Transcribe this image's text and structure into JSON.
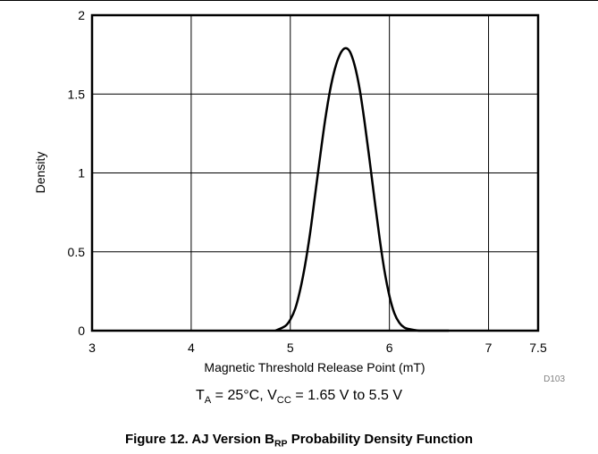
{
  "chart_data": {
    "type": "line",
    "title": "",
    "xlabel": "Magnetic Threshold Release Point (mT)",
    "ylabel": "Density",
    "xlim": [
      3,
      7.5
    ],
    "ylim": [
      0,
      2
    ],
    "xticks": [
      "3",
      "4",
      "5",
      "6",
      "7",
      "7.5"
    ],
    "xtick_values": [
      3,
      4,
      5,
      6,
      7,
      7.5
    ],
    "yticks": [
      "0",
      "0.5",
      "1",
      "1.5",
      "2"
    ],
    "ytick_values": [
      0,
      0.5,
      1,
      1.5,
      2
    ],
    "grid": true,
    "series": [
      {
        "x": [
          4.85,
          4.95,
          5.0,
          5.05,
          5.1,
          5.15,
          5.2,
          5.25,
          5.3,
          5.35,
          5.4,
          5.45,
          5.5,
          5.55,
          5.6,
          5.65,
          5.7,
          5.75,
          5.8,
          5.85,
          5.9,
          5.95,
          6.0,
          6.05,
          6.1,
          6.15,
          6.2,
          6.3,
          6.4,
          6.5,
          6.6
        ],
        "y": [
          0.0,
          0.03,
          0.07,
          0.14,
          0.26,
          0.42,
          0.62,
          0.86,
          1.1,
          1.33,
          1.52,
          1.66,
          1.75,
          1.79,
          1.77,
          1.68,
          1.53,
          1.32,
          1.08,
          0.83,
          0.59,
          0.38,
          0.22,
          0.11,
          0.05,
          0.02,
          0.01,
          0.0,
          0.0,
          0.0,
          0.0
        ]
      }
    ]
  },
  "figure_code": "D103",
  "conditions": {
    "t": "T",
    "t_sub": "A",
    "mid": " = 25°C, V",
    "v_sub": "CC",
    "tail": " = 1.65 V to 5.5 V"
  },
  "caption": {
    "prefix": "Figure 12. AJ Version B",
    "sub": "RP",
    "suffix": " Probability Density Function"
  }
}
